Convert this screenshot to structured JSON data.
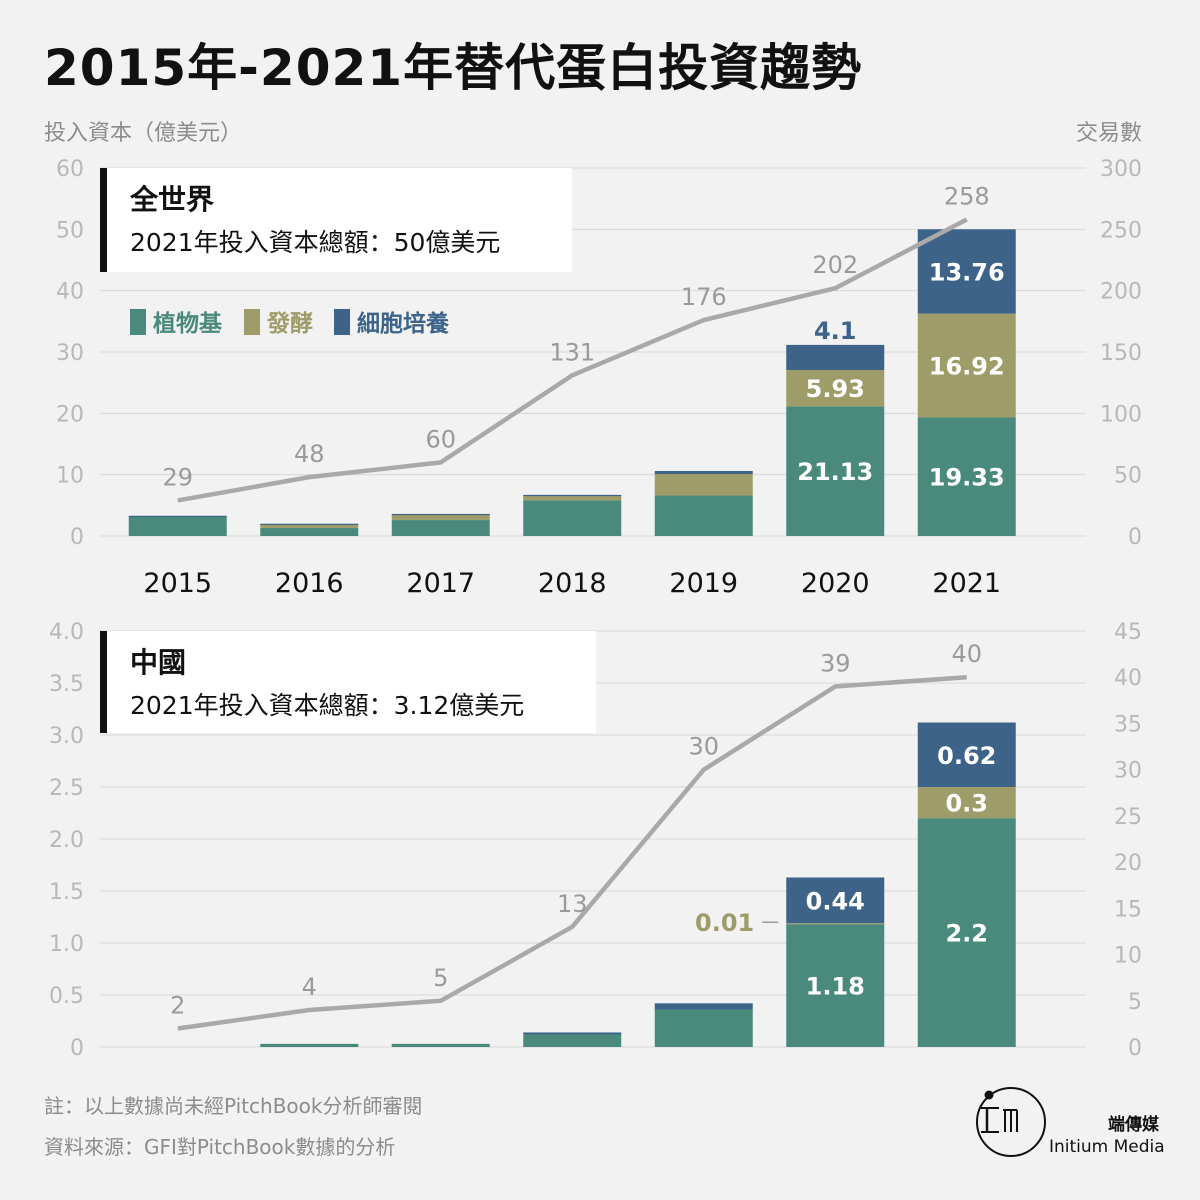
{
  "title": "2015年-2021年替代蛋白投資趨勢",
  "left_axis_label": "投入資本（億美元）",
  "right_axis_label": "交易數",
  "legend": [
    {
      "label": "植物基",
      "color": "#4a8a7d"
    },
    {
      "label": "發酵",
      "color": "#9e9c69"
    },
    {
      "label": "細胞培養",
      "color": "#3d6488"
    }
  ],
  "colors": {
    "line": "#a9a9a9",
    "axis_text": "#b8b8b8",
    "grid": "#d8d8d8",
    "count_label": "#9a9a9a"
  },
  "chart_data": [
    {
      "type": "bar",
      "panel": "top",
      "box_title": "全世界",
      "box_subtitle": "2021年投入資本總額：50億美元",
      "categories": [
        "2015",
        "2016",
        "2017",
        "2018",
        "2019",
        "2020",
        "2021"
      ],
      "series": [
        {
          "name": "植物基",
          "values": [
            3.2,
            1.3,
            2.6,
            5.8,
            6.6,
            21.13,
            19.33
          ]
        },
        {
          "name": "發酵",
          "values": [
            0,
            0.6,
            0.9,
            0.8,
            3.5,
            5.93,
            16.92
          ]
        },
        {
          "name": "細胞培養",
          "values": [
            0.1,
            0.1,
            0.1,
            0.1,
            0.5,
            4.1,
            13.76
          ]
        }
      ],
      "bar_labels": [
        {
          "category": "2020",
          "series": "植物基",
          "text": "21.13"
        },
        {
          "category": "2020",
          "series": "發酵",
          "text": "5.93"
        },
        {
          "category": "2020",
          "series": "細胞培養",
          "text": "4.1",
          "placement": "above"
        },
        {
          "category": "2021",
          "series": "植物基",
          "text": "19.33"
        },
        {
          "category": "2021",
          "series": "發酵",
          "text": "16.92"
        },
        {
          "category": "2021",
          "series": "細胞培養",
          "text": "13.76"
        }
      ],
      "deals": {
        "values": [
          29,
          48,
          60,
          131,
          176,
          202,
          258
        ]
      },
      "ylim": [
        0,
        60
      ],
      "yticks": [
        "0",
        "10",
        "20",
        "30",
        "40",
        "50",
        "60"
      ],
      "y2lim": [
        0,
        300
      ],
      "y2ticks": [
        "0",
        "50",
        "100",
        "150",
        "200",
        "250",
        "300"
      ],
      "show_x_tick_labels": true,
      "grid": true
    },
    {
      "type": "bar",
      "panel": "bottom",
      "box_title": "中國",
      "box_subtitle": "2021年投入資本總額：3.12億美元",
      "categories": [
        "2015",
        "2016",
        "2017",
        "2018",
        "2019",
        "2020",
        "2021"
      ],
      "series": [
        {
          "name": "植物基",
          "values": [
            0,
            0.03,
            0.03,
            0.12,
            0.36,
            1.18,
            2.2
          ]
        },
        {
          "name": "發酵",
          "values": [
            0,
            0,
            0,
            0,
            0,
            0.01,
            0.3
          ]
        },
        {
          "name": "細胞培養",
          "values": [
            0,
            0,
            0,
            0.02,
            0.06,
            0.44,
            0.62
          ]
        }
      ],
      "bar_labels": [
        {
          "category": "2020",
          "series": "植物基",
          "text": "1.18"
        },
        {
          "category": "2020",
          "series": "發酵",
          "text": "0.01",
          "placement": "left"
        },
        {
          "category": "2020",
          "series": "細胞培養",
          "text": "0.44"
        },
        {
          "category": "2021",
          "series": "植物基",
          "text": "2.2"
        },
        {
          "category": "2021",
          "series": "發酵",
          "text": "0.3"
        },
        {
          "category": "2021",
          "series": "細胞培養",
          "text": "0.62"
        }
      ],
      "deals": {
        "values": [
          2,
          4,
          5,
          13,
          30,
          39,
          40
        ]
      },
      "ylim": [
        0,
        4
      ],
      "yticks": [
        "0",
        "0.5",
        "1.0",
        "1.5",
        "2.0",
        "2.5",
        "3.0",
        "3.5",
        "4.0"
      ],
      "y2lim": [
        0,
        45
      ],
      "y2ticks": [
        "0",
        "5",
        "10",
        "15",
        "20",
        "25",
        "30",
        "35",
        "40",
        "45"
      ],
      "show_x_tick_labels": false,
      "grid": true
    }
  ],
  "footnotes": {
    "note": "註：以上數據尚未經PitchBook分析師審閱",
    "source": "資料來源：GFI對PitchBook數據的分析"
  },
  "brand": {
    "zh": "端傳媒",
    "en": "Initium Media"
  }
}
